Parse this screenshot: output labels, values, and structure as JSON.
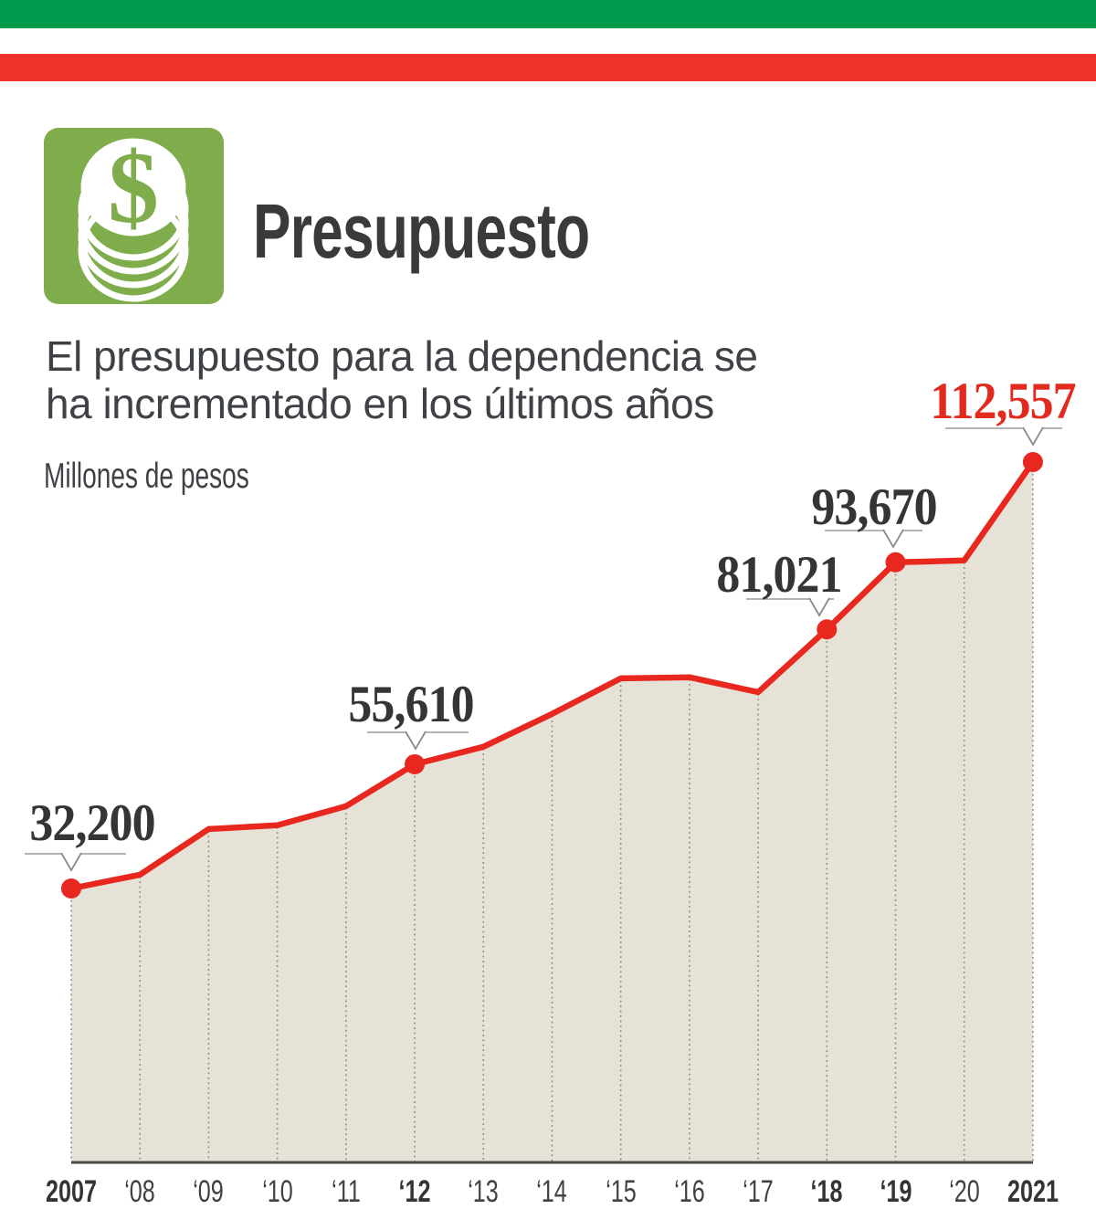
{
  "flag_bars": {
    "green": "#009a4d",
    "red": "#ee332b"
  },
  "header": {
    "title": "Presupuesto",
    "icon": "coin-stack-dollar-icon",
    "icon_bg": "#7fad4b"
  },
  "intro": {
    "line1": "El presupuesto para la dependencia se",
    "line2": "ha incrementado en los últimos años"
  },
  "units_label": "Millones de pesos",
  "chart_data": {
    "type": "area",
    "title": "Presupuesto",
    "subtitle": "El presupuesto para la dependencia se ha incrementado en los últimos años",
    "ylabel": "Millones de pesos",
    "x": [
      "2007",
      "‘08",
      "‘09",
      "‘10",
      "‘11",
      "‘12",
      "‘13",
      "‘14",
      "‘15",
      "‘16",
      "‘17",
      "‘18",
      "‘19",
      "‘20",
      "2021"
    ],
    "values": [
      32200,
      34800,
      43400,
      44100,
      47700,
      55610,
      58900,
      65100,
      71800,
      72000,
      69200,
      81021,
      93670,
      94000,
      112557
    ],
    "labeled_points": [
      {
        "x": "2007",
        "index": 0,
        "value": 32200,
        "label": "32,200",
        "color": "#353535"
      },
      {
        "x": "‘12",
        "index": 5,
        "value": 55610,
        "label": "55,610",
        "color": "#353535"
      },
      {
        "x": "‘18",
        "index": 11,
        "value": 81021,
        "label": "81,021",
        "color": "#353535"
      },
      {
        "x": "‘19",
        "index": 12,
        "value": 93670,
        "label": "93,670",
        "color": "#353535"
      },
      {
        "x": "2021",
        "index": 14,
        "value": 112557,
        "label": "112,557",
        "color": "#e22a1f"
      }
    ],
    "bold_ticks": [
      "2007",
      "‘12",
      "‘18",
      "‘19",
      "2021"
    ],
    "line_color": "#e8281f",
    "area_color": "#e7e2d8",
    "grid": "dotted-vertical",
    "legend": "none",
    "xlim": [
      "2007",
      "2021"
    ]
  }
}
